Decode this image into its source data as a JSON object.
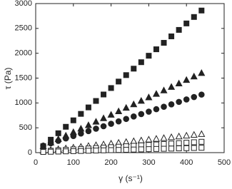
{
  "chart_data": {
    "type": "scatter",
    "x_label": "γ (s⁻¹)",
    "y_label": "τ (Pa)",
    "xlim": [
      0,
      500
    ],
    "xticks": [
      0,
      100,
      200,
      300,
      400,
      500
    ],
    "ylim": [
      0,
      3000
    ],
    "yticks": [
      0,
      500,
      1000,
      1500,
      2000,
      2500,
      3000
    ],
    "x": [
      20,
      40,
      60,
      80,
      100,
      120,
      140,
      160,
      180,
      200,
      220,
      240,
      260,
      280,
      300,
      320,
      340,
      360,
      380,
      400,
      420,
      440
    ],
    "series": [
      {
        "marker": "square",
        "filled": true,
        "color": "#222222",
        "values": [
          130,
          260,
          390,
          520,
          650,
          780,
          910,
          1040,
          1170,
          1300,
          1430,
          1560,
          1690,
          1820,
          1950,
          2080,
          2210,
          2340,
          2470,
          2600,
          2730,
          2860
        ]
      },
      {
        "marker": "triangle",
        "filled": true,
        "color": "#222222",
        "values": [
          130,
          200,
          270,
          340,
          410,
          480,
          550,
          620,
          690,
          760,
          830,
          900,
          970,
          1040,
          1110,
          1180,
          1250,
          1320,
          1390,
          1460,
          1530,
          1600
        ]
      },
      {
        "marker": "circle",
        "filled": true,
        "color": "#222222",
        "values": [
          139,
          188,
          237,
          286,
          335,
          384,
          433,
          482,
          531,
          580,
          629,
          678,
          727,
          776,
          825,
          874,
          923,
          972,
          1021,
          1070,
          1119,
          1168
        ]
      },
      {
        "marker": "triangle",
        "filled": false,
        "color": "#222222",
        "values": [
          36,
          52,
          68,
          84,
          100,
          116,
          132,
          148,
          164,
          180,
          196,
          212,
          228,
          244,
          260,
          276,
          292,
          308,
          324,
          340,
          356,
          372
        ]
      },
      {
        "marker": "square",
        "filled": false,
        "color": "#222222",
        "values": [
          29,
          38,
          47,
          56,
          65,
          74,
          83,
          92,
          101,
          110,
          119,
          128,
          137,
          146,
          155,
          164,
          173,
          182,
          191,
          200,
          209,
          218
        ]
      },
      {
        "marker": "square",
        "filled": false,
        "color": "#222222",
        "values": [
          14,
          18,
          22,
          26,
          30,
          34,
          38,
          42,
          46,
          50,
          54,
          58,
          62,
          66,
          70,
          74,
          78,
          82,
          86,
          90,
          94,
          98
        ]
      }
    ]
  }
}
